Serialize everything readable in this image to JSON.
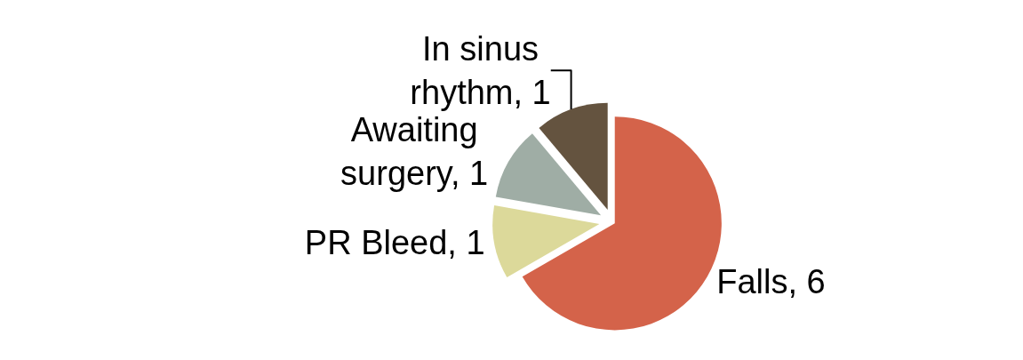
{
  "chart_data": {
    "type": "pie",
    "categories": [
      "Falls, 6",
      "PR Bleed, 1",
      "Awaiting surgery, 1",
      "In sinus rhythm, 1"
    ],
    "values": [
      6,
      1,
      1,
      1
    ],
    "colors": [
      "#d4634a",
      "#dcd99a",
      "#9fada5",
      "#64533f"
    ],
    "legend": false
  }
}
